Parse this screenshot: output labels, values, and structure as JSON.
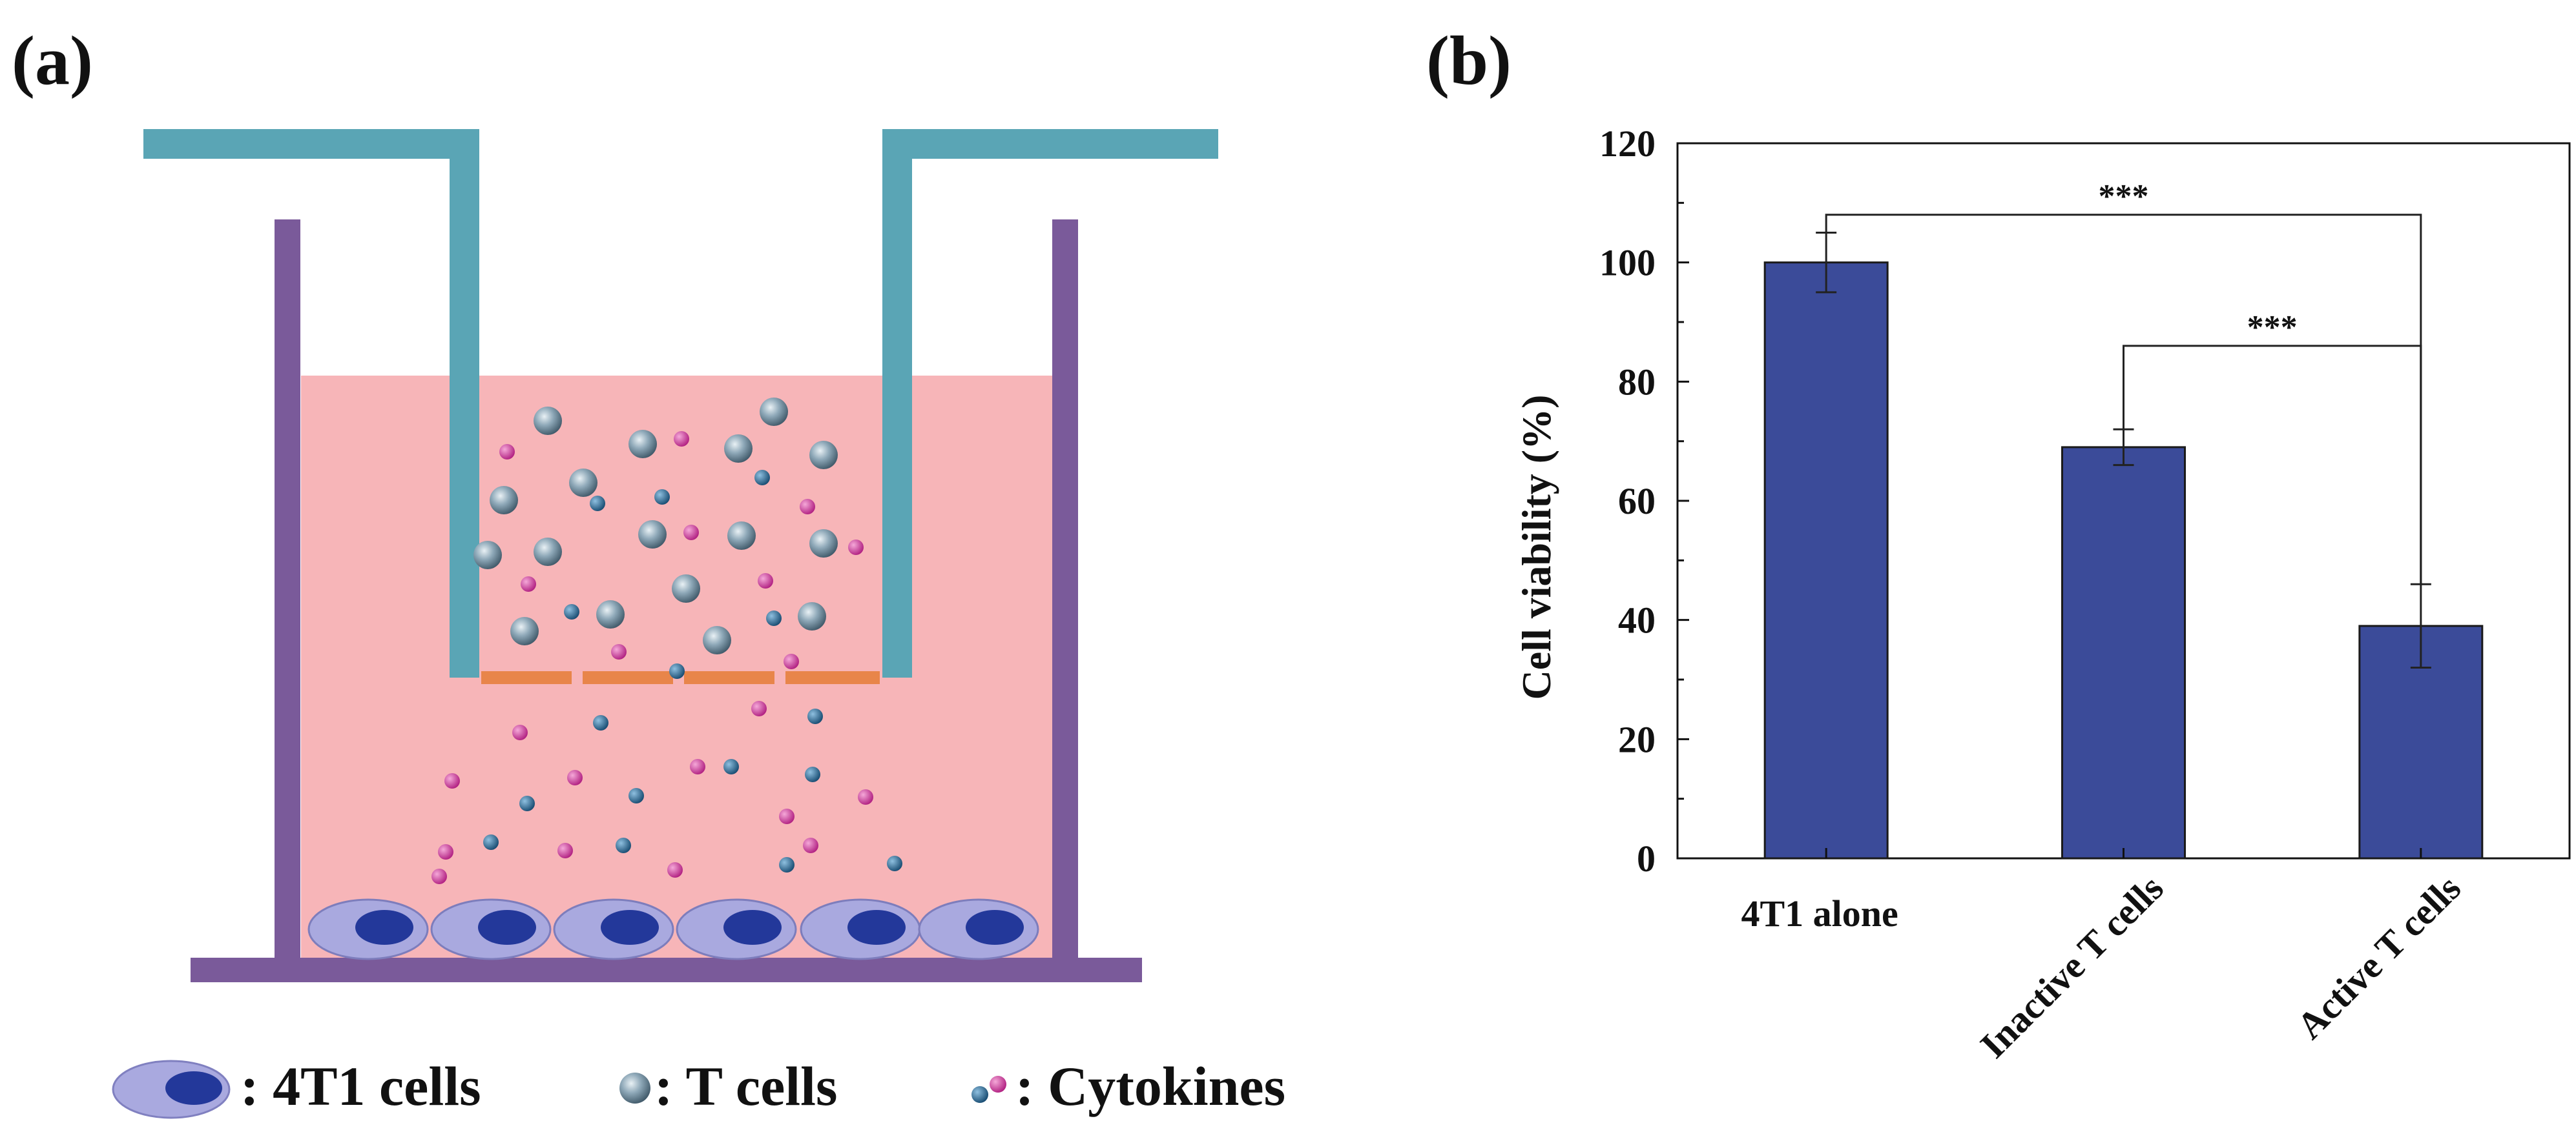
{
  "panels": {
    "a_label": "(a)",
    "b_label": "(b)"
  },
  "legend": [
    {
      "icon": "4t1-cell-icon",
      "label": ": 4T1 cells"
    },
    {
      "icon": "t-cell-icon",
      "label": ": T cells"
    },
    {
      "icon": "cytokine-icon",
      "label": ": Cytokines"
    }
  ],
  "colors": {
    "insert": "#5aa5b5",
    "well": "#7a5a9a",
    "medium": "#f7b5b8",
    "membrane": "#e8854a",
    "cell_outer": "#a9a9df",
    "cell_nucleus": "#23389a",
    "cytokine_pink": "#d02f98",
    "cytokine_blue": "#1f5f8c",
    "bar": "#3b4b99",
    "t_cell": "#7d97a8"
  },
  "chart_data": {
    "type": "bar",
    "title": "",
    "xlabel": "",
    "ylabel": "Cell viability (%)",
    "categories": [
      "4T1 alone",
      "Inactive T cells",
      "Active T cells"
    ],
    "values": [
      100,
      69,
      39
    ],
    "errors": [
      5,
      3,
      7
    ],
    "ylim": [
      0,
      120
    ],
    "yticks": [
      "0",
      "20",
      "40",
      "60",
      "80",
      "100",
      "120"
    ],
    "significance": [
      {
        "from": 0,
        "to": 2,
        "label": "***",
        "level": 108
      },
      {
        "from": 1,
        "to": 2,
        "label": "***",
        "level": 86
      }
    ]
  }
}
